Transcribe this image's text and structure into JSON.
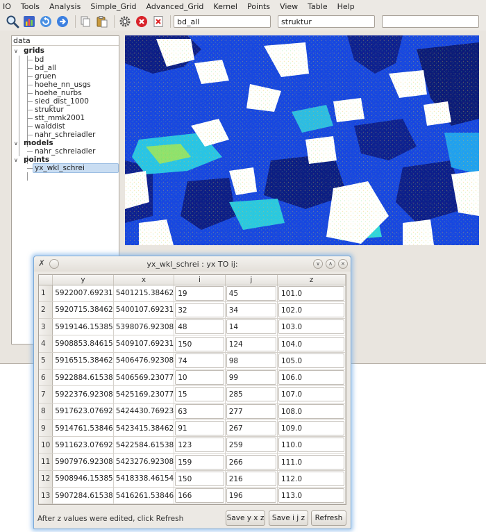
{
  "menu": [
    "IO",
    "Tools",
    "Analysis",
    "Simple_Grid",
    "Advanced_Grid",
    "Kernel",
    "Points",
    "View",
    "Table",
    "Help"
  ],
  "toolbar": {
    "icons": [
      "zoom-icon",
      "chart-icon",
      "refresh-icon",
      "forward-icon",
      "copy-icon",
      "paste-icon",
      "settings-icon",
      "stop-icon",
      "clear-icon"
    ],
    "grid_field_value": "bd_all",
    "second_field_value": "struktur",
    "third_field_value": ""
  },
  "tree": {
    "title": "data",
    "groups": [
      {
        "label": "grids",
        "items": [
          "bd",
          "bd_all",
          "gruen",
          "hoehe_nn_usgs",
          "hoehe_nurbs",
          "sied_dist_1000",
          "struktur",
          "stt_mmk2001",
          "walddist",
          "nahr_schreiadler"
        ]
      },
      {
        "label": "models",
        "items": [
          "nahr_schreiadler"
        ]
      },
      {
        "label": "points",
        "items": [
          "yx_wkl_schrei"
        ]
      }
    ],
    "selected": "yx_wkl_schrei"
  },
  "map": {
    "background": "#1240d8",
    "accent_dark": "#0a1a7a",
    "accent_cyan": "#2ad0e8",
    "accent_green": "#8de06a"
  },
  "dialog": {
    "title": "yx_wkl_schrei :  yx  TO  ij:",
    "columns": [
      "y",
      "x",
      "i",
      "j",
      "z"
    ],
    "rows": [
      [
        "1",
        "5922007.69231",
        "5401215.38462",
        "19",
        "45",
        "101.0"
      ],
      [
        "2",
        "5920715.38462",
        "5400107.69231",
        "32",
        "34",
        "102.0"
      ],
      [
        "3",
        "5919146.15385",
        "5398076.92308",
        "48",
        "14",
        "103.0"
      ],
      [
        "4",
        "5908853.84615",
        "5409107.69231",
        "150",
        "124",
        "104.0"
      ],
      [
        "5",
        "5916515.38462",
        "5406476.92308",
        "74",
        "98",
        "105.0"
      ],
      [
        "6",
        "5922884.61538",
        "5406569.23077",
        "10",
        "99",
        "106.0"
      ],
      [
        "7",
        "5922376.92308",
        "5425169.23077",
        "15",
        "285",
        "107.0"
      ],
      [
        "8",
        "5917623.07692",
        "5424430.76923",
        "63",
        "277",
        "108.0"
      ],
      [
        "9",
        "5914761.53846",
        "5423415.38462",
        "91",
        "267",
        "109.0"
      ],
      [
        "10",
        "5911623.07692",
        "5422584.61538",
        "123",
        "259",
        "110.0"
      ],
      [
        "11",
        "5907976.92308",
        "5423276.92308",
        "159",
        "266",
        "111.0"
      ],
      [
        "12",
        "5908946.15385",
        "5418338.46154",
        "150",
        "216",
        "112.0"
      ],
      [
        "13",
        "5907284.61538",
        "5416261.53846",
        "166",
        "196",
        "113.0"
      ]
    ],
    "hint": "After z values were edited, click  Refresh",
    "buttons": {
      "save_yxz": "Save  y x z",
      "save_ijz": "Save  i j z",
      "refresh": "Refresh"
    }
  }
}
